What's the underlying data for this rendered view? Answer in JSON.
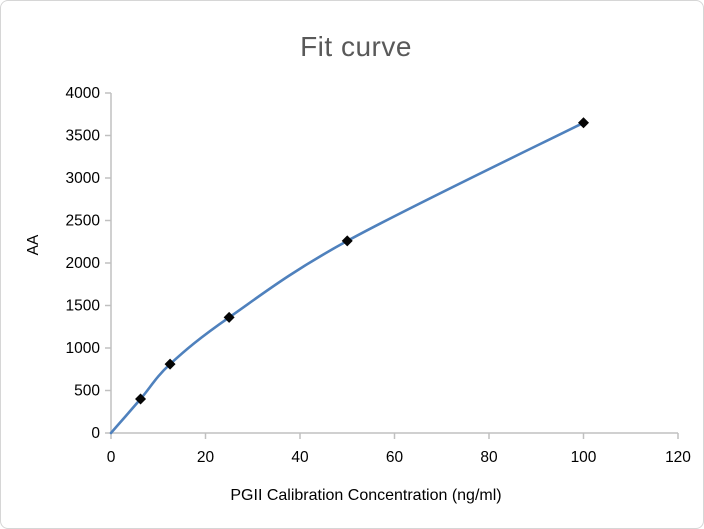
{
  "window": {
    "background": "#ffffff",
    "border_color": "#d6d6d6"
  },
  "chart_data": {
    "type": "line",
    "title": "Fit curve",
    "xlabel": "PGⅡ Calibration Concentration（ng/ml）",
    "ylabel": "AA",
    "points": [
      {
        "x": 0,
        "y": 0,
        "marker": false
      },
      {
        "x": 6.25,
        "y": 400,
        "marker": true
      },
      {
        "x": 12.5,
        "y": 810,
        "marker": true
      },
      {
        "x": 25,
        "y": 1360,
        "marker": true
      },
      {
        "x": 50,
        "y": 2260,
        "marker": true
      },
      {
        "x": 100,
        "y": 3650,
        "marker": true
      }
    ],
    "xlim": [
      0,
      120
    ],
    "ylim": [
      0,
      4000
    ],
    "xticks": [
      0,
      20,
      40,
      60,
      80,
      100,
      120
    ],
    "yticks": [
      0,
      500,
      1000,
      1500,
      2000,
      2500,
      3000,
      3500,
      4000
    ],
    "grid": false,
    "legend": null,
    "smooth": true,
    "marker_shape": "diamond",
    "colors": {
      "line": "#4F81BD",
      "marker": "#050505",
      "axis": "#C0C0C0",
      "tick_label": "#000000",
      "axis_title": "#000000",
      "title": "#595959"
    }
  }
}
